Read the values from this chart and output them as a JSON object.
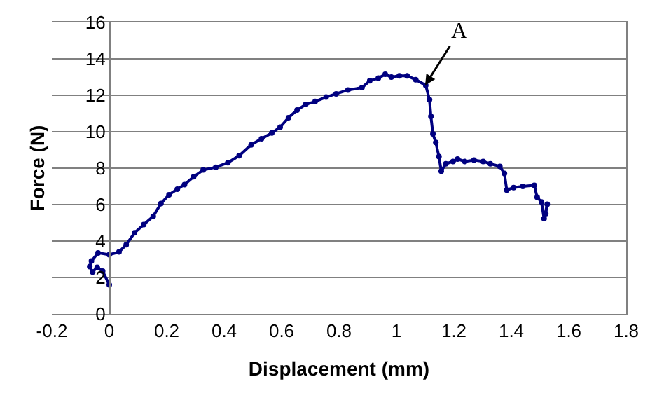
{
  "chart_data": {
    "type": "line",
    "xlabel": "Displacement (mm)",
    "ylabel": "Force (N)",
    "xlim": [
      -0.2,
      1.8
    ],
    "xticks": [
      -0.2,
      0,
      0.2,
      0.4,
      0.6,
      0.8,
      1,
      1.2,
      1.4,
      1.6,
      1.8
    ],
    "ylim": [
      0,
      16
    ],
    "yticks": [
      0,
      2,
      4,
      6,
      8,
      10,
      12,
      14,
      16
    ],
    "grid": "y",
    "marker": "circle",
    "line_style": "solid",
    "annotations": [
      {
        "text": "A",
        "x": 1.1,
        "y": 12.55
      }
    ],
    "series": [
      {
        "color": "#000080",
        "x": [
          0.0,
          -0.023,
          -0.042,
          -0.058,
          -0.068,
          -0.062,
          -0.039,
          0.0,
          0.034,
          0.059,
          0.088,
          0.12,
          0.153,
          0.18,
          0.208,
          0.237,
          0.262,
          0.294,
          0.327,
          0.371,
          0.413,
          0.452,
          0.494,
          0.53,
          0.566,
          0.595,
          0.624,
          0.654,
          0.684,
          0.717,
          0.755,
          0.79,
          0.831,
          0.88,
          0.907,
          0.937,
          0.961,
          0.982,
          1.01,
          1.037,
          1.067,
          1.102,
          1.115,
          1.12,
          1.127,
          1.137,
          1.148,
          1.156,
          1.172,
          1.197,
          1.213,
          1.238,
          1.27,
          1.302,
          1.327,
          1.36,
          1.376,
          1.384,
          1.408,
          1.44,
          1.48,
          1.49,
          1.505,
          1.514,
          1.525,
          1.52
        ],
        "values": [
          1.6,
          2.35,
          2.56,
          2.3,
          2.6,
          2.9,
          3.35,
          3.25,
          3.4,
          3.8,
          4.45,
          4.9,
          5.36,
          6.06,
          6.54,
          6.85,
          7.1,
          7.53,
          7.9,
          8.05,
          8.3,
          8.68,
          9.28,
          9.62,
          9.93,
          10.25,
          10.77,
          11.19,
          11.5,
          11.66,
          11.9,
          12.08,
          12.29,
          12.42,
          12.8,
          12.94,
          13.15,
          13.0,
          13.07,
          13.07,
          12.86,
          12.55,
          11.76,
          10.85,
          9.88,
          9.41,
          8.63,
          7.84,
          8.24,
          8.37,
          8.5,
          8.37,
          8.44,
          8.37,
          8.24,
          8.1,
          7.71,
          6.8,
          6.93,
          7.0,
          7.06,
          6.4,
          6.14,
          5.23,
          6.02,
          5.5
        ]
      }
    ]
  }
}
